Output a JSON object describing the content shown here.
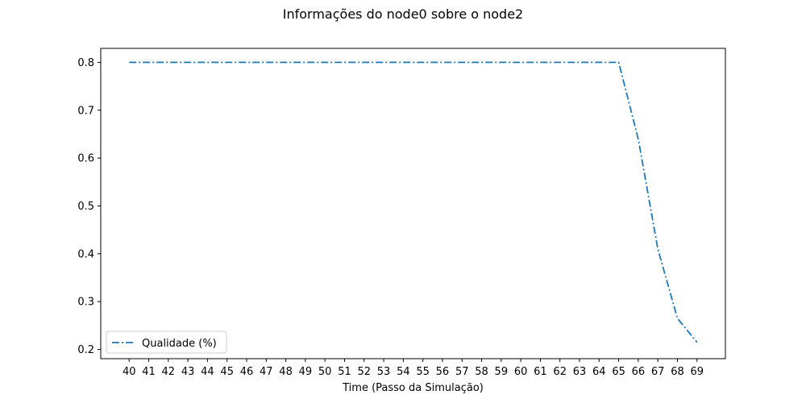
{
  "chart_data": {
    "type": "line",
    "title": "Informações do node0 sobre o node2",
    "xlabel": "Time (Passo da Simulação)",
    "ylabel": "",
    "x": [
      40,
      41,
      42,
      43,
      44,
      45,
      46,
      47,
      48,
      49,
      50,
      51,
      52,
      53,
      54,
      55,
      56,
      57,
      58,
      59,
      60,
      61,
      62,
      63,
      64,
      65,
      66,
      67,
      68,
      69
    ],
    "xlim": [
      38.55,
      70.45
    ],
    "ylim": [
      0.1807,
      0.8293
    ],
    "yticks": [
      0.2,
      0.3,
      0.4,
      0.5,
      0.6,
      0.7,
      0.8
    ],
    "ytick_labels": [
      "0.2",
      "0.3",
      "0.4",
      "0.5",
      "0.6",
      "0.7",
      "0.8"
    ],
    "xtick_labels": [
      "40",
      "41",
      "42",
      "43",
      "44",
      "45",
      "46",
      "47",
      "48",
      "49",
      "50",
      "51",
      "52",
      "53",
      "54",
      "55",
      "56",
      "57",
      "58",
      "59",
      "60",
      "61",
      "62",
      "63",
      "64",
      "65",
      "66",
      "67",
      "68",
      "69"
    ],
    "grid": false,
    "legend_position": "lower-left",
    "series": [
      {
        "name": "Qualidade (%)",
        "color": "#1f77b4",
        "linestyle": "dash-dot",
        "values": [
          0.8,
          0.8,
          0.8,
          0.8,
          0.8,
          0.8,
          0.8,
          0.8,
          0.8,
          0.8,
          0.8,
          0.8,
          0.8,
          0.8,
          0.8,
          0.8,
          0.8,
          0.8,
          0.8,
          0.8,
          0.8,
          0.8,
          0.8,
          0.8,
          0.8,
          0.8,
          0.64,
          0.41,
          0.265,
          0.215
        ]
      }
    ]
  }
}
